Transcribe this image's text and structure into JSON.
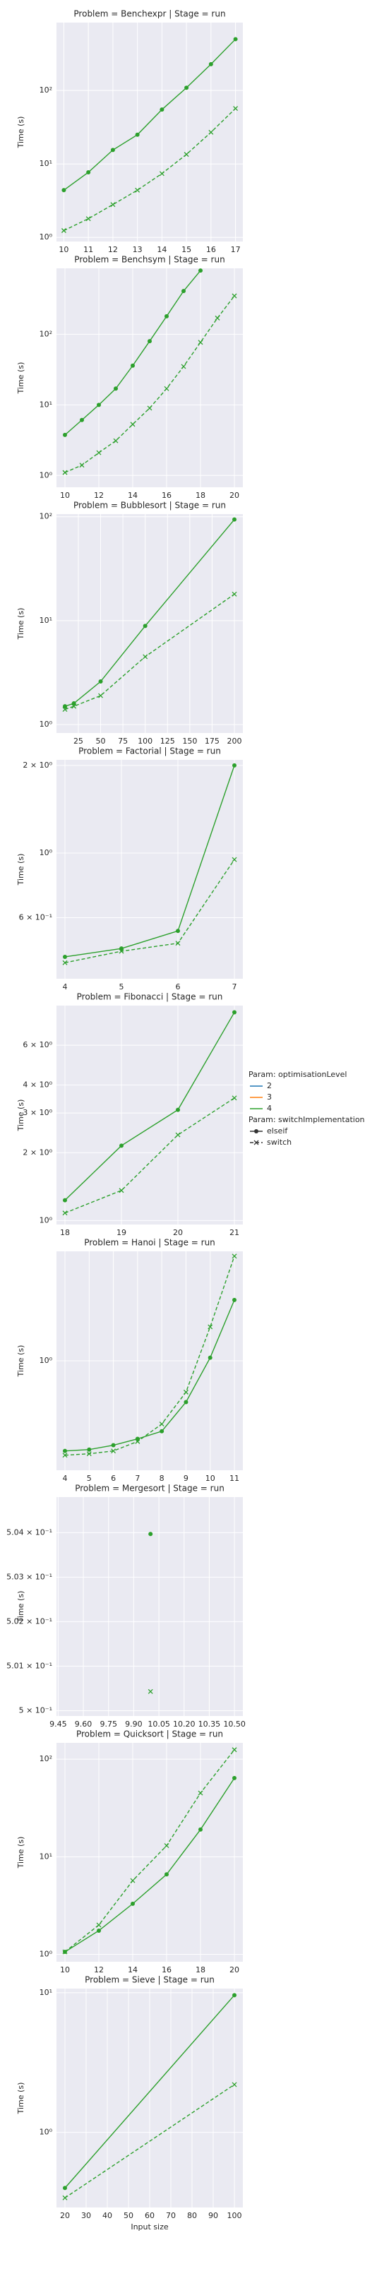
{
  "chart_data": [
    {
      "type": "line",
      "title": "Problem = Benchexpr | Stage = run",
      "ylabel": "Time (s)",
      "yscale": "log",
      "grid": true,
      "x": [
        10,
        11,
        12,
        13,
        14,
        15,
        16,
        17
      ],
      "xlim": [
        9.7,
        17.3
      ],
      "xticks": [
        10,
        11,
        12,
        13,
        14,
        15,
        16,
        17
      ],
      "ylim": [
        0.88,
        840
      ],
      "yticks": [
        {
          "value": 1,
          "label": "10⁰"
        },
        {
          "value": 10,
          "label": "10¹"
        },
        {
          "value": 100,
          "label": "10²"
        }
      ],
      "series": [
        {
          "color": "#2ca02c",
          "style": "solid",
          "marker": "o",
          "values": [
            4.4,
            7.7,
            15.5,
            25,
            55,
            109,
            228,
            500
          ]
        },
        {
          "color": "#2ca02c",
          "style": "dashed",
          "marker": "x",
          "values": [
            1.24,
            1.8,
            2.8,
            4.4,
            7.4,
            13.5,
            27,
            57
          ]
        }
      ]
    },
    {
      "type": "line",
      "title": "Problem = Benchsym | Stage = run",
      "ylabel": "Time (s)",
      "yscale": "log",
      "grid": true,
      "x": [
        10,
        11,
        12,
        13,
        14,
        15,
        16,
        17,
        18,
        19,
        20
      ],
      "xlim": [
        9.5,
        20.5
      ],
      "xticks": [
        10,
        12,
        14,
        16,
        18,
        20
      ],
      "ylim": [
        0.68,
        860
      ],
      "yticks": [
        {
          "value": 1,
          "label": "10⁰"
        },
        {
          "value": 10,
          "label": "10¹"
        },
        {
          "value": 100,
          "label": "10²"
        }
      ],
      "series": [
        {
          "color": "#2ca02c",
          "style": "solid",
          "marker": "o",
          "values": [
            3.75,
            6.1,
            10,
            17,
            36,
            80,
            180,
            410,
            800,
            null,
            null
          ]
        },
        {
          "color": "#2ca02c",
          "style": "dashed",
          "marker": "x",
          "values": [
            1.1,
            1.4,
            2.1,
            3.1,
            5.3,
            9,
            17,
            35,
            77,
            170,
            350
          ]
        }
      ]
    },
    {
      "type": "line",
      "title": "Problem = Bubblesort | Stage = run",
      "ylabel": "Time (s)",
      "yscale": "log",
      "grid": true,
      "x": [
        10,
        20,
        50,
        100,
        200
      ],
      "xlim": [
        0.5,
        209.5
      ],
      "xticks": [
        25,
        50,
        75,
        100,
        125,
        150,
        175,
        200
      ],
      "ylim": [
        0.83,
        106
      ],
      "yticks": [
        {
          "value": 1,
          "label": "10⁰"
        },
        {
          "value": 10,
          "label": "10¹"
        },
        {
          "value": 100,
          "label": "10²"
        }
      ],
      "series": [
        {
          "color": "#2ca02c",
          "style": "solid",
          "marker": "o",
          "values": [
            1.5,
            1.6,
            2.6,
            8.9,
            94
          ]
        },
        {
          "color": "#2ca02c",
          "style": "dashed",
          "marker": "x",
          "values": [
            1.4,
            1.5,
            1.9,
            4.5,
            18
          ]
        }
      ]
    },
    {
      "type": "line",
      "title": "Problem = Factorial | Stage = run",
      "ylabel": "Time (s)",
      "yscale": "log",
      "grid": true,
      "x": [
        4,
        5,
        6,
        7
      ],
      "xlim": [
        3.85,
        7.15
      ],
      "xticks": [
        4,
        5,
        6,
        7
      ],
      "ylim": [
        0.37,
        2.09
      ],
      "yticks": [
        {
          "value": 0.6,
          "label": "6 × 10⁻¹"
        },
        {
          "value": 1,
          "label": "10⁰"
        },
        {
          "value": 2,
          "label": "2 × 10⁰"
        }
      ],
      "series": [
        {
          "color": "#2ca02c",
          "style": "solid",
          "marker": "o",
          "values": [
            0.44,
            0.47,
            0.54,
            2.0
          ]
        },
        {
          "color": "#2ca02c",
          "style": "dashed",
          "marker": "x",
          "values": [
            0.42,
            0.46,
            0.49,
            0.95
          ]
        }
      ]
    },
    {
      "type": "line",
      "title": "Problem = Fibonacci | Stage = run",
      "ylabel": "Time (s)",
      "yscale": "log",
      "grid": true,
      "x": [
        18,
        19,
        20,
        21
      ],
      "xlim": [
        17.85,
        21.15
      ],
      "xticks": [
        18,
        19,
        20,
        21
      ],
      "ylim": [
        0.96,
        9.0
      ],
      "yticks": [
        {
          "value": 1,
          "label": "10⁰"
        },
        {
          "value": 2,
          "label": "2 × 10⁰"
        },
        {
          "value": 3,
          "label": "3 × 10⁰"
        },
        {
          "value": 4,
          "label": "4 × 10⁰"
        },
        {
          "value": 6,
          "label": "6 × 10⁰"
        }
      ],
      "series": [
        {
          "color": "#2ca02c",
          "style": "solid",
          "marker": "o",
          "values": [
            1.23,
            2.15,
            3.1,
            8.4
          ]
        },
        {
          "color": "#2ca02c",
          "style": "dashed",
          "marker": "x",
          "values": [
            1.08,
            1.36,
            2.4,
            3.5
          ]
        }
      ]
    },
    {
      "type": "line",
      "title": "Problem = Hanoi | Stage = run",
      "ylabel": "Time (s)",
      "yscale": "log",
      "grid": true,
      "x": [
        4,
        5,
        6,
        7,
        8,
        9,
        10,
        11
      ],
      "xlim": [
        3.65,
        11.35
      ],
      "xticks": [
        4,
        5,
        6,
        7,
        8,
        9,
        10,
        11
      ],
      "ylim": [
        0.5,
        2.0
      ],
      "yticks": [
        {
          "value": 1,
          "label": "10⁰"
        }
      ],
      "series": [
        {
          "color": "#2ca02c",
          "style": "solid",
          "marker": "o",
          "values": [
            0.565,
            0.57,
            0.586,
            0.61,
            0.64,
            0.77,
            1.02,
            1.47
          ]
        },
        {
          "color": "#2ca02c",
          "style": "dashed",
          "marker": "x",
          "values": [
            0.55,
            0.555,
            0.565,
            0.6,
            0.67,
            0.82,
            1.24,
            1.94
          ]
        }
      ]
    },
    {
      "type": "line",
      "title": "Problem = Mergesort | Stage = run",
      "ylabel": "Time (s)",
      "yscale": "linear",
      "grid": true,
      "x": [
        10
      ],
      "xlim": [
        9.44,
        10.55
      ],
      "xticks": [
        9.45,
        {
          "value": 9.6,
          "label": "9.60"
        },
        9.75,
        {
          "value": 9.9,
          "label": "9.90"
        },
        10.05,
        {
          "value": 10.2,
          "label": "10.20"
        },
        10.35,
        {
          "value": 10.5,
          "label": "10.50"
        }
      ],
      "ylim": [
        0.49988,
        0.5048
      ],
      "yticks": [
        {
          "value": 0.5,
          "label": "5 × 10⁻¹"
        },
        {
          "value": 0.501,
          "label": "5.01 × 10⁻¹"
        },
        {
          "value": 0.502,
          "label": "5.02 × 10⁻¹"
        },
        {
          "value": 0.503,
          "label": "5.03 × 10⁻¹"
        },
        {
          "value": 0.504,
          "label": "5.04 × 10⁻¹"
        }
      ],
      "series": [
        {
          "color": "#2ca02c",
          "style": "solid",
          "marker": "o",
          "values": [
            0.50397
          ]
        },
        {
          "color": "#2ca02c",
          "style": "dashed",
          "marker": "x",
          "values": [
            0.50043
          ]
        }
      ]
    },
    {
      "type": "line",
      "title": "Problem = Quicksort | Stage = run",
      "ylabel": "Time (s)",
      "yscale": "log",
      "grid": true,
      "x": [
        10,
        12,
        14,
        16,
        18,
        20
      ],
      "xlim": [
        9.5,
        20.5
      ],
      "xticks": [
        10,
        12,
        14,
        16,
        18,
        20
      ],
      "ylim": [
        0.84,
        147
      ],
      "yticks": [
        {
          "value": 1,
          "label": "10⁰"
        },
        {
          "value": 10,
          "label": "10¹"
        },
        {
          "value": 100,
          "label": "10²"
        }
      ],
      "series": [
        {
          "color": "#2ca02c",
          "style": "solid",
          "marker": "o",
          "values": [
            1.06,
            1.75,
            3.3,
            6.6,
            19,
            64
          ]
        },
        {
          "color": "#2ca02c",
          "style": "dashed",
          "marker": "x",
          "values": [
            1.06,
            2.0,
            5.7,
            13,
            45,
            125
          ]
        }
      ]
    },
    {
      "type": "line",
      "title": "Problem = Sieve | Stage = run",
      "ylabel": "Time (s)",
      "xlabel": "Input size",
      "yscale": "log",
      "grid": true,
      "x": [
        20,
        100
      ],
      "xlim": [
        16,
        104
      ],
      "xticks": [
        20,
        30,
        40,
        50,
        60,
        70,
        80,
        90,
        100
      ],
      "ylim": [
        0.29,
        10.7
      ],
      "yticks": [
        {
          "value": 1,
          "label": "10⁰"
        },
        {
          "value": 10,
          "label": "10¹"
        }
      ],
      "series": [
        {
          "color": "#2ca02c",
          "style": "solid",
          "marker": "o",
          "values": [
            0.4,
            9.6
          ]
        },
        {
          "color": "#2ca02c",
          "style": "dashed",
          "marker": "x",
          "values": [
            0.34,
            2.2
          ]
        }
      ]
    }
  ],
  "legend": {
    "title": "Param: optimisationLevel",
    "entries": [
      {
        "name": "2",
        "color": "#1f77b4"
      },
      {
        "name": "3",
        "color": "#ff7f0e"
      },
      {
        "name": "4",
        "color": "#2ca02c"
      }
    ],
    "style_title": "Param: switchImplementation",
    "styles": [
      {
        "name": "elseif",
        "style": "solid",
        "marker": "o"
      },
      {
        "name": "switch",
        "style": "dashed",
        "marker": "x"
      }
    ]
  }
}
